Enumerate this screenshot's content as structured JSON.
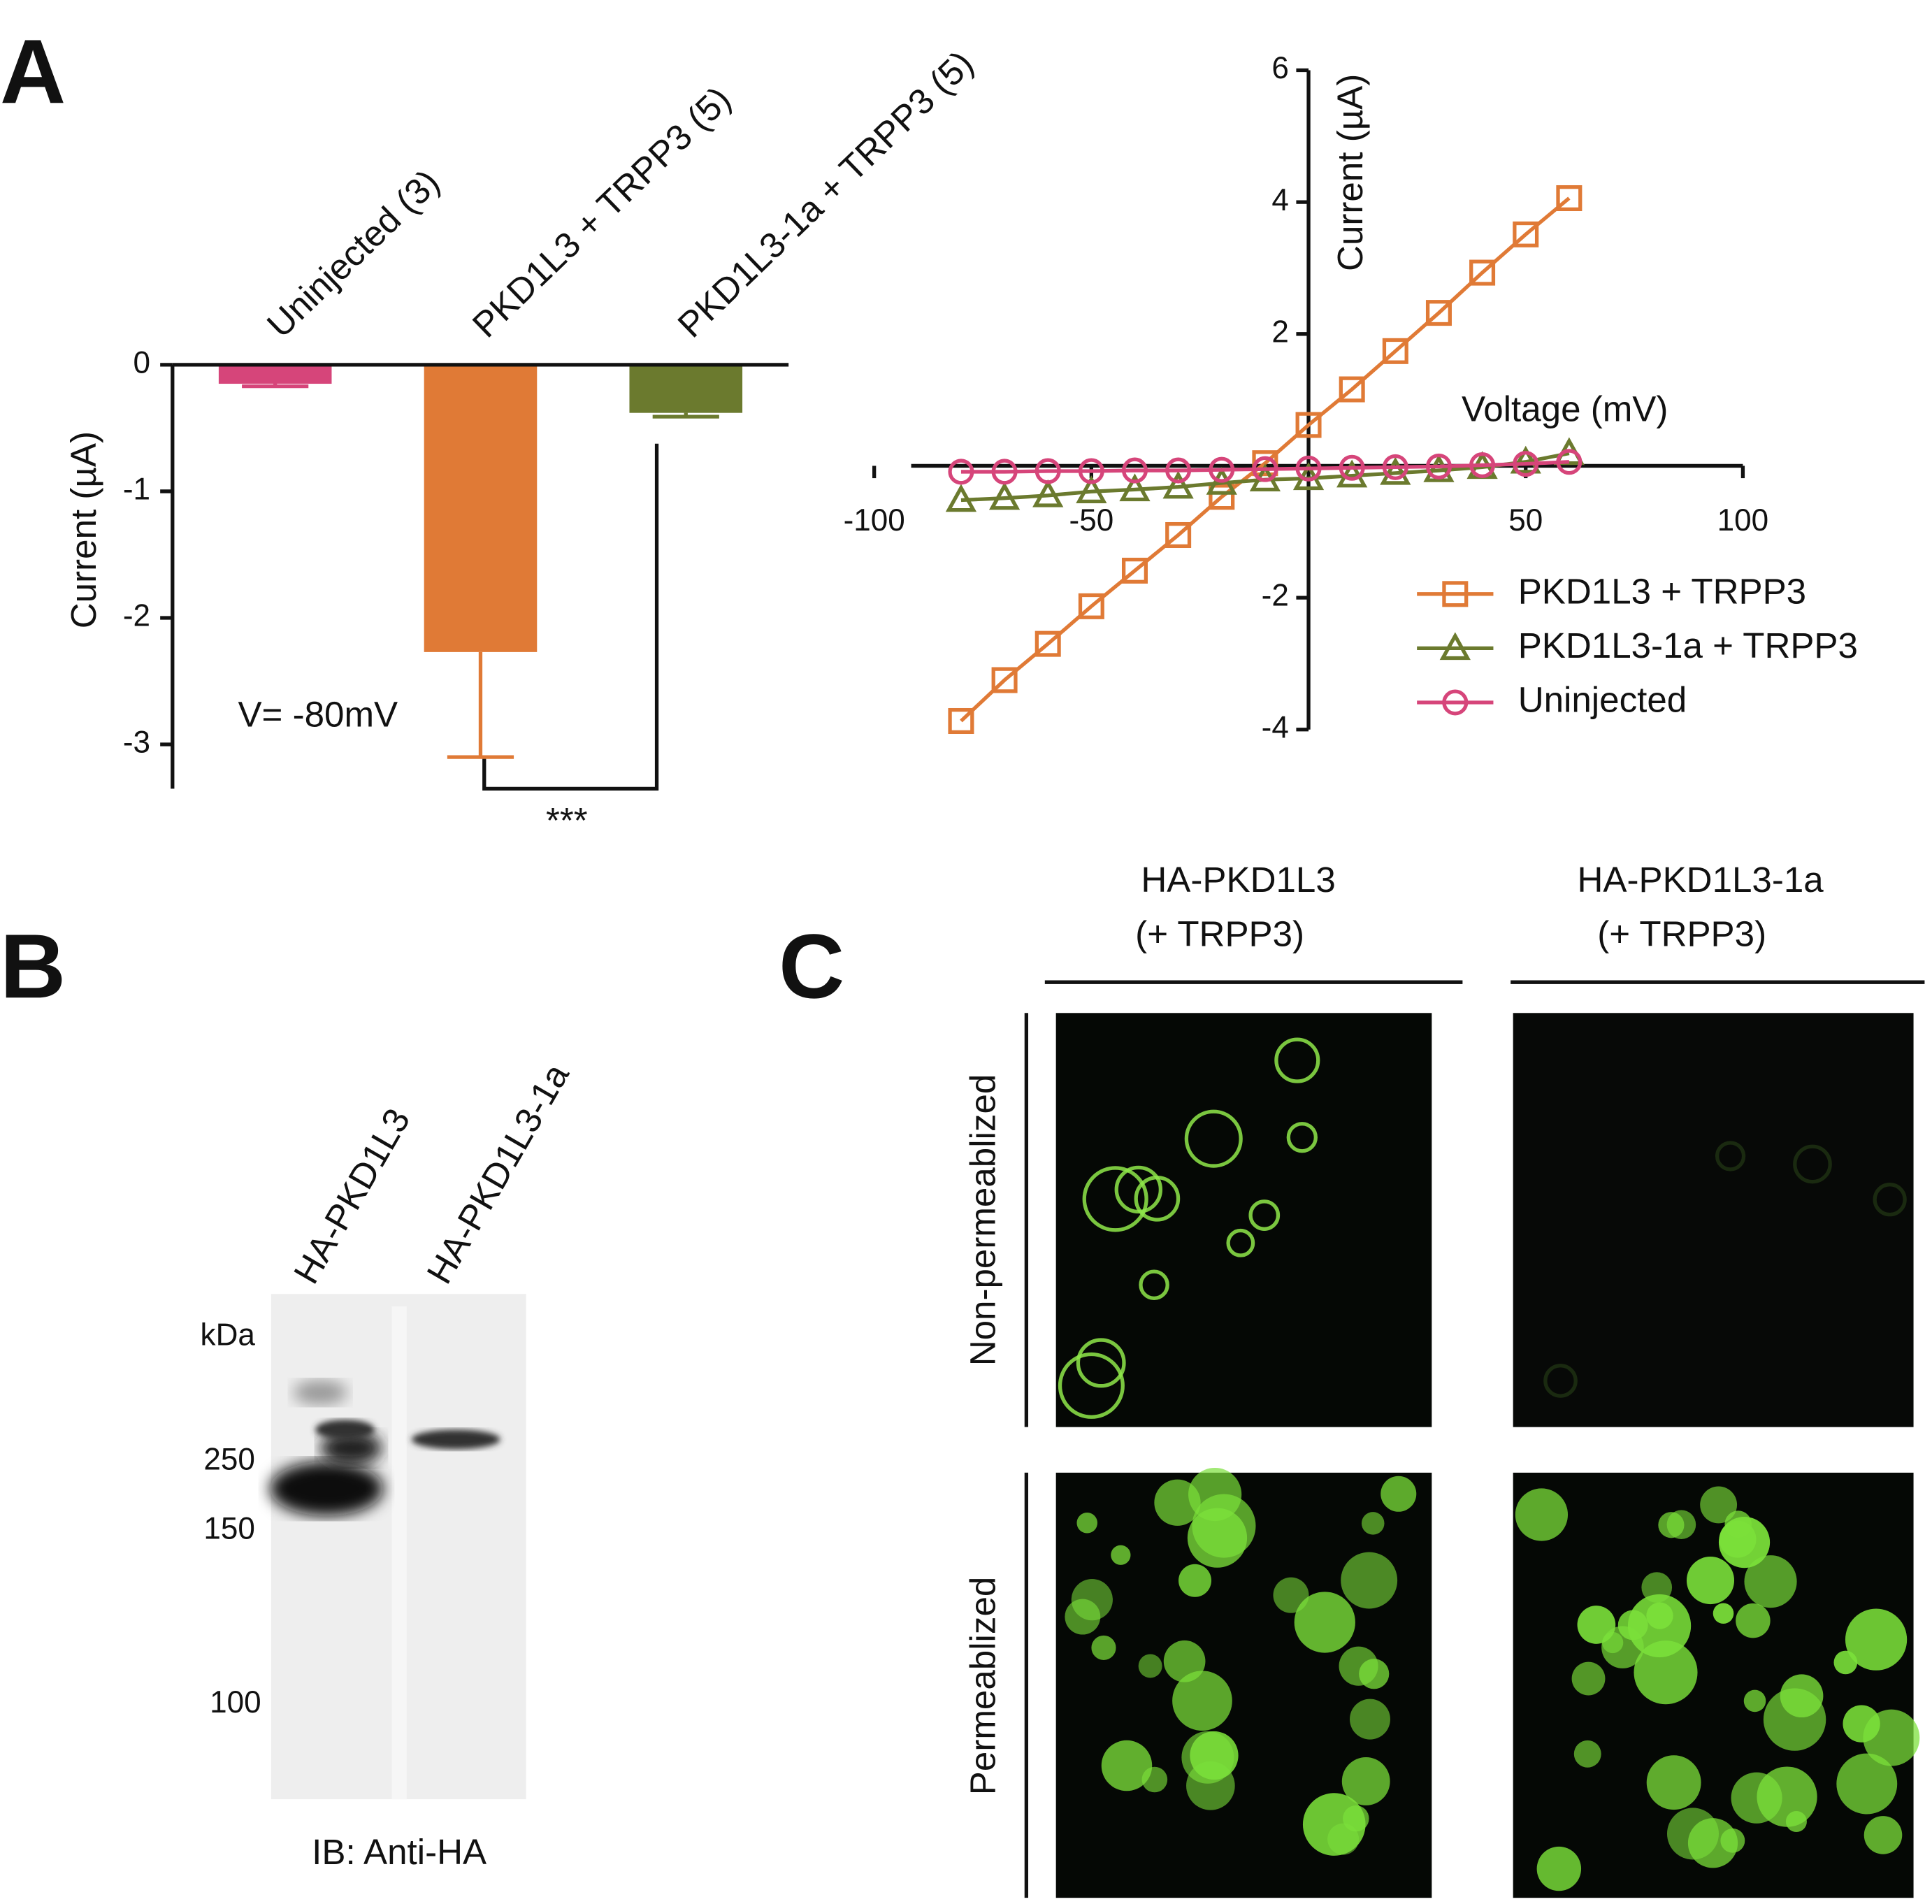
{
  "chart_data": [
    {
      "type": "bar",
      "panel": "A",
      "categories": [
        "Uninjected (3)",
        "PKD1L3 + TRPP3 (5)",
        "PKD1L3-1a + TRPP3 (5)"
      ],
      "values": [
        -0.15,
        -2.27,
        -0.38
      ],
      "errors": [
        0.02,
        0.83,
        0.03
      ],
      "colors": [
        "#d6457a",
        "#e07a36",
        "#6b7a2e"
      ],
      "y_label": "Current (µA)",
      "ylim": [
        -3.35,
        0
      ],
      "yticks": [
        0,
        -1,
        -2,
        -3
      ],
      "annotations": [
        "V= -80mV",
        "***"
      ]
    },
    {
      "type": "line",
      "x": [
        -80,
        -70,
        -60,
        -50,
        -40,
        -30,
        -20,
        -10,
        0,
        10,
        20,
        30,
        40,
        50,
        60
      ],
      "x_label": "Voltage (mV)",
      "y_label": "Current (µA)",
      "xlim": [
        -100,
        100
      ],
      "xticks": [
        -100,
        -50,
        50,
        100
      ],
      "ylim": [
        -4,
        6
      ],
      "yticks": [
        -4,
        -2,
        2,
        4,
        6
      ],
      "legend": "lower right",
      "series": [
        {
          "name": "PKD1L3 + TRPP3",
          "color": "#e07a36",
          "marker": "square",
          "values": [
            -3.87,
            -3.25,
            -2.7,
            -2.13,
            -1.59,
            -1.05,
            -0.47,
            0.04,
            0.62,
            1.16,
            1.74,
            2.32,
            2.93,
            3.51,
            4.06
          ]
        },
        {
          "name": "PKD1L3-1a + TRPP3",
          "color": "#6b7a2e",
          "marker": "triangle",
          "values": [
            -0.52,
            -0.49,
            -0.45,
            -0.39,
            -0.36,
            -0.32,
            -0.26,
            -0.21,
            -0.19,
            -0.15,
            -0.11,
            -0.07,
            -0.02,
            0.06,
            0.19
          ]
        },
        {
          "name": "Uninjected",
          "color": "#d6457a",
          "marker": "circle",
          "values": [
            -0.09,
            -0.09,
            -0.08,
            -0.08,
            -0.07,
            -0.07,
            -0.06,
            -0.05,
            -0.04,
            -0.03,
            -0.02,
            -0.01,
            0.01,
            0.03,
            0.06
          ]
        }
      ]
    }
  ],
  "blot": {
    "panel": "B",
    "lanes": [
      "HA-PKD1L3",
      "HA-PKD1L3-1a"
    ],
    "unit": "kDa",
    "markers": [
      250,
      150,
      100
    ],
    "caption": "IB: Anti-HA"
  },
  "imaging": {
    "panel": "C",
    "columns": [
      {
        "title": "HA-PKD1L3",
        "subtitle": "(+ TRPP3)"
      },
      {
        "title": "HA-PKD1L3-1a",
        "subtitle": "(+ TRPP3)"
      }
    ],
    "rows": [
      "Non-permeablized",
      "Permeablized"
    ]
  }
}
